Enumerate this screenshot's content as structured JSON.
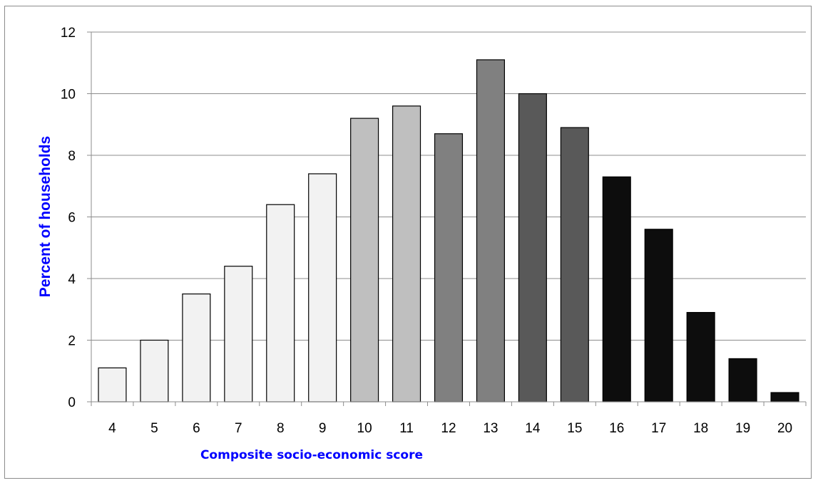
{
  "chart_data": {
    "type": "bar",
    "xlabel": "Composite socio-economic score",
    "ylabel": "Percent of households",
    "ylim": [
      0,
      12
    ],
    "yticks": [
      0,
      2,
      4,
      6,
      8,
      10,
      12
    ],
    "grid": true,
    "categories": [
      "4",
      "5",
      "6",
      "7",
      "8",
      "9",
      "10",
      "11",
      "12",
      "13",
      "14",
      "15",
      "16",
      "17",
      "18",
      "19",
      "20"
    ],
    "values": [
      1.1,
      2.0,
      3.5,
      4.4,
      6.4,
      7.4,
      9.2,
      9.6,
      8.7,
      11.1,
      10.0,
      8.9,
      7.3,
      5.6,
      2.9,
      1.4,
      0.3
    ],
    "bar_colors": [
      "#f2f2f2",
      "#f2f2f2",
      "#f2f2f2",
      "#f2f2f2",
      "#f2f2f2",
      "#f2f2f2",
      "#bfbfbf",
      "#bfbfbf",
      "#808080",
      "#808080",
      "#595959",
      "#595959",
      "#0d0d0d",
      "#0d0d0d",
      "#0d0d0d",
      "#0d0d0d",
      "#0d0d0d"
    ],
    "label_color": "#0000ff"
  }
}
